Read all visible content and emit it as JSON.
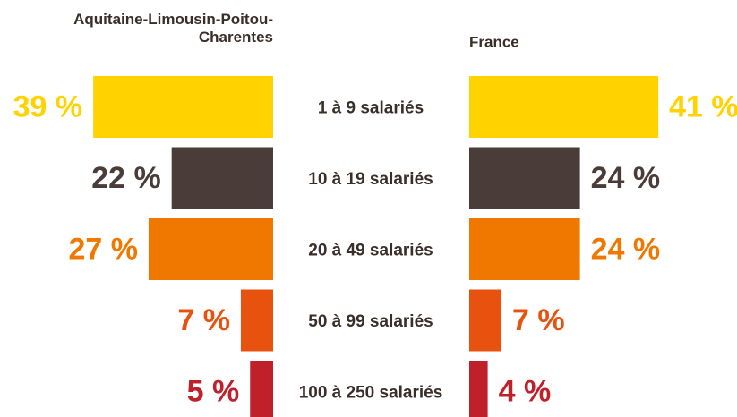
{
  "chart_data": {
    "type": "bar",
    "categories": [
      "1 à 9 salariés",
      "10 à 19 salariés",
      "20 à 49 salariés",
      "50 à 99 salariés",
      "100 à 250 salariés"
    ],
    "colors": [
      "#ffd200",
      "#4a3c38",
      "#f07800",
      "#e8520f",
      "#c0202a"
    ],
    "series": [
      {
        "name": "Aquitaine-Limousin-Poitou-Charentes",
        "values": [
          39,
          22,
          27,
          7,
          5
        ],
        "value_labels": [
          "39 %",
          "22 %",
          "27 %",
          "7 %",
          "5 %"
        ]
      },
      {
        "name": "France",
        "values": [
          41,
          24,
          24,
          7,
          4
        ],
        "value_labels": [
          "41 %",
          "24 %",
          "24 %",
          "7 %",
          "4 %"
        ]
      }
    ]
  }
}
